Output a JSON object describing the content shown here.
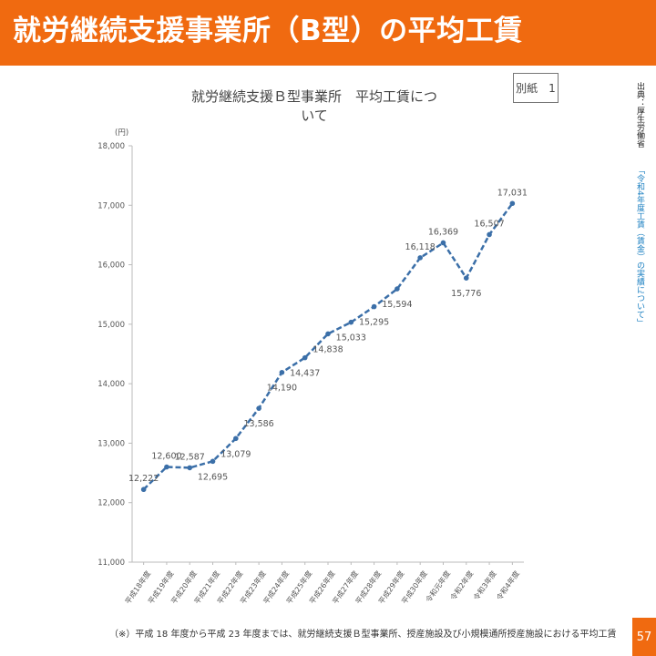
{
  "header": {
    "title": "就労継続支援事業所（B型）の平均工賃"
  },
  "badge": {
    "label": "別紙　1"
  },
  "source": {
    "label": "出典：厚生労働省",
    "link": "「令和4年度工賃（賃金）の実績について」"
  },
  "footnote": "（※）平成 18 年度から平成 23 年度までは、就労継続支援Ｂ型事業所、授産施設及び小規模通所授産施設における平均工賃",
  "page_number": "57",
  "colors": {
    "header": "#f06a10",
    "line": "#3b6fa8",
    "axis": "#bbbbbb"
  },
  "chart_data": {
    "type": "line",
    "title": "就労継続支援Ｂ型事業所　平均工賃について",
    "y_unit": "(円)",
    "ylim": [
      11000,
      18000
    ],
    "y_ticks": [
      "11,000",
      "12,000",
      "13,000",
      "14,000",
      "15,000",
      "16,000",
      "17,000",
      "18,000"
    ],
    "grid": false,
    "categories": [
      "平成18年度",
      "平成19年度",
      "平成20年度",
      "平成21年度",
      "平成22年度",
      "平成23年度",
      "平成24年度",
      "平成25年度",
      "平成26年度",
      "平成27年度",
      "平成28年度",
      "平成29年度",
      "平成30年度",
      "令和元年度",
      "令和2年度",
      "令和3年度",
      "令和4年度"
    ],
    "series": [
      {
        "values": [
          12222,
          12600,
          12587,
          12695,
          13079,
          13586,
          14190,
          14437,
          14838,
          15033,
          15295,
          15594,
          16118,
          16369,
          15776,
          16507,
          17031
        ],
        "labels": [
          "12,222",
          "12,600",
          "12,587",
          "12,695",
          "13,079",
          "13,586",
          "14,190",
          "14,437",
          "14,838",
          "15,033",
          "15,295",
          "15,594",
          "16,118",
          "16,369",
          "15,776",
          "16,507",
          "17,031"
        ]
      }
    ]
  }
}
